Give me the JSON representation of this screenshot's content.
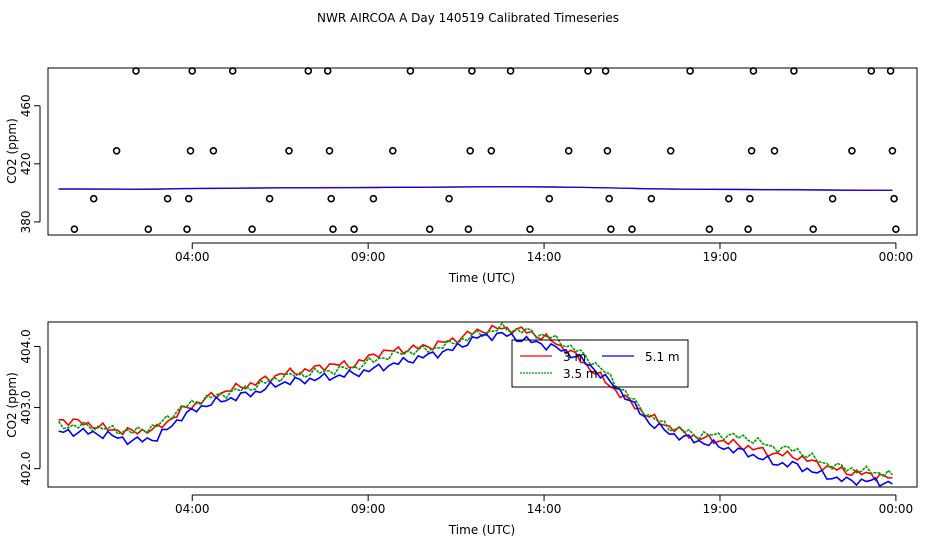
{
  "title": "NWR AIRCOA A  Day 140519  Calibrated Timeseries",
  "chart_data": [
    {
      "type": "scatter",
      "name": "top-panel",
      "xlabel": "Time (UTC)",
      "ylabel": "CO2 (ppm)",
      "xlim": [
        -0.1,
        24.6
      ],
      "ylim": [
        371,
        486
      ],
      "xticks": [
        {
          "value": 4,
          "label": "04:00"
        },
        {
          "value": 9,
          "label": "09:00"
        },
        {
          "value": 14,
          "label": "14:00"
        },
        {
          "value": 19,
          "label": "19:00"
        },
        {
          "value": 24,
          "label": "00:00"
        }
      ],
      "yticks": [
        {
          "value": 380,
          "label": "380"
        },
        {
          "value": 420,
          "label": "420"
        },
        {
          "value": 460,
          "label": "460"
        }
      ],
      "points": [
        [
          0.65,
          375
        ],
        [
          1.2,
          396
        ],
        [
          1.85,
          429
        ],
        [
          2.4,
          484
        ],
        [
          2.75,
          375
        ],
        [
          3.3,
          396
        ],
        [
          3.85,
          375
        ],
        [
          3.9,
          396
        ],
        [
          3.95,
          429
        ],
        [
          4.0,
          484
        ],
        [
          4.6,
          429
        ],
        [
          5.15,
          484
        ],
        [
          5.7,
          375
        ],
        [
          6.2,
          396
        ],
        [
          6.75,
          429
        ],
        [
          7.3,
          484
        ],
        [
          7.85,
          484
        ],
        [
          7.9,
          429
        ],
        [
          7.95,
          396
        ],
        [
          8.0,
          375
        ],
        [
          8.6,
          375
        ],
        [
          9.15,
          396
        ],
        [
          9.7,
          429
        ],
        [
          10.2,
          484
        ],
        [
          10.75,
          375
        ],
        [
          11.3,
          396
        ],
        [
          11.85,
          375
        ],
        [
          11.9,
          429
        ],
        [
          11.95,
          484
        ],
        [
          12.5,
          429
        ],
        [
          13.05,
          484
        ],
        [
          13.6,
          375
        ],
        [
          14.15,
          396
        ],
        [
          14.7,
          429
        ],
        [
          15.25,
          484
        ],
        [
          15.75,
          484
        ],
        [
          15.8,
          429
        ],
        [
          15.85,
          396
        ],
        [
          15.9,
          375
        ],
        [
          16.5,
          375
        ],
        [
          17.05,
          396
        ],
        [
          17.6,
          429
        ],
        [
          18.15,
          484
        ],
        [
          18.7,
          375
        ],
        [
          19.25,
          396
        ],
        [
          19.8,
          375
        ],
        [
          19.85,
          396
        ],
        [
          19.9,
          429
        ],
        [
          19.95,
          484
        ],
        [
          20.55,
          429
        ],
        [
          21.1,
          484
        ],
        [
          21.65,
          375
        ],
        [
          22.2,
          396
        ],
        [
          22.75,
          429
        ],
        [
          23.3,
          484
        ],
        [
          23.85,
          484
        ],
        [
          23.9,
          429
        ],
        [
          23.95,
          396
        ],
        [
          24.0,
          375
        ]
      ],
      "series": [
        {
          "name": "3 m",
          "color": "#ff0000",
          "source": "series_3m"
        },
        {
          "name": "3.5 m",
          "color": "#00a000",
          "source": "series_35m"
        },
        {
          "name": "5.1 m",
          "color": "#0000ff",
          "source": "series_51m"
        }
      ]
    },
    {
      "type": "line",
      "name": "bottom-panel",
      "xlabel": "Time (UTC)",
      "ylabel": "CO2 (ppm)",
      "xlim": [
        -0.1,
        24.6
      ],
      "ylim": [
        401.7,
        404.4
      ],
      "xticks": [
        {
          "value": 4,
          "label": "04:00"
        },
        {
          "value": 9,
          "label": "09:00"
        },
        {
          "value": 14,
          "label": "14:00"
        },
        {
          "value": 19,
          "label": "19:00"
        },
        {
          "value": 24,
          "label": "00:00"
        }
      ],
      "yticks": [
        {
          "value": 402.0,
          "label": "402.0"
        },
        {
          "value": 403.0,
          "label": "403.0"
        },
        {
          "value": 404.0,
          "label": "404.0"
        }
      ],
      "legend": {
        "position": "top-center",
        "entries": [
          "3 m",
          "3.5 m",
          "5.1 m"
        ]
      },
      "x": [
        0.2,
        0.9,
        1.6,
        2.3,
        3.0,
        3.7,
        4.4,
        5.1,
        5.8,
        6.5,
        7.2,
        7.9,
        8.6,
        9.3,
        10.0,
        10.7,
        11.4,
        12.1,
        12.8,
        13.5,
        14.2,
        14.9,
        15.6,
        16.3,
        17.0,
        17.7,
        18.4,
        19.1,
        19.8,
        20.5,
        21.2,
        21.9,
        22.6,
        23.3,
        23.9
      ],
      "series": [
        {
          "name": "3 m",
          "color": "#ff0000",
          "values": [
            402.8,
            402.75,
            402.65,
            402.6,
            402.65,
            402.95,
            403.15,
            403.3,
            403.4,
            403.55,
            403.6,
            403.7,
            403.7,
            403.9,
            403.95,
            404.0,
            404.1,
            404.25,
            404.3,
            404.25,
            404.1,
            403.85,
            403.5,
            403.15,
            402.85,
            402.65,
            402.5,
            402.45,
            402.35,
            402.25,
            402.2,
            402.05,
            401.95,
            401.9,
            401.85
          ]
        },
        {
          "name": "3.5 m",
          "color": "#00a000",
          "values": [
            402.7,
            402.7,
            402.65,
            402.6,
            402.7,
            403.0,
            403.15,
            403.25,
            403.35,
            403.5,
            403.55,
            403.6,
            403.65,
            403.8,
            403.9,
            403.95,
            404.05,
            404.2,
            404.3,
            404.25,
            404.15,
            403.95,
            403.65,
            403.25,
            402.85,
            402.65,
            402.55,
            402.55,
            402.5,
            402.35,
            402.3,
            402.1,
            402.0,
            401.95,
            401.9
          ]
        },
        {
          "name": "5.1 m",
          "color": "#0000ff",
          "values": [
            402.6,
            402.6,
            402.55,
            402.45,
            402.5,
            402.85,
            403.05,
            403.15,
            403.25,
            403.4,
            403.45,
            403.5,
            403.55,
            403.65,
            403.75,
            403.85,
            403.95,
            404.15,
            404.2,
            404.1,
            404.0,
            403.85,
            403.55,
            403.2,
            402.75,
            402.55,
            402.45,
            402.35,
            402.25,
            402.1,
            402.05,
            401.9,
            401.8,
            401.8,
            401.75
          ]
        }
      ]
    }
  ]
}
